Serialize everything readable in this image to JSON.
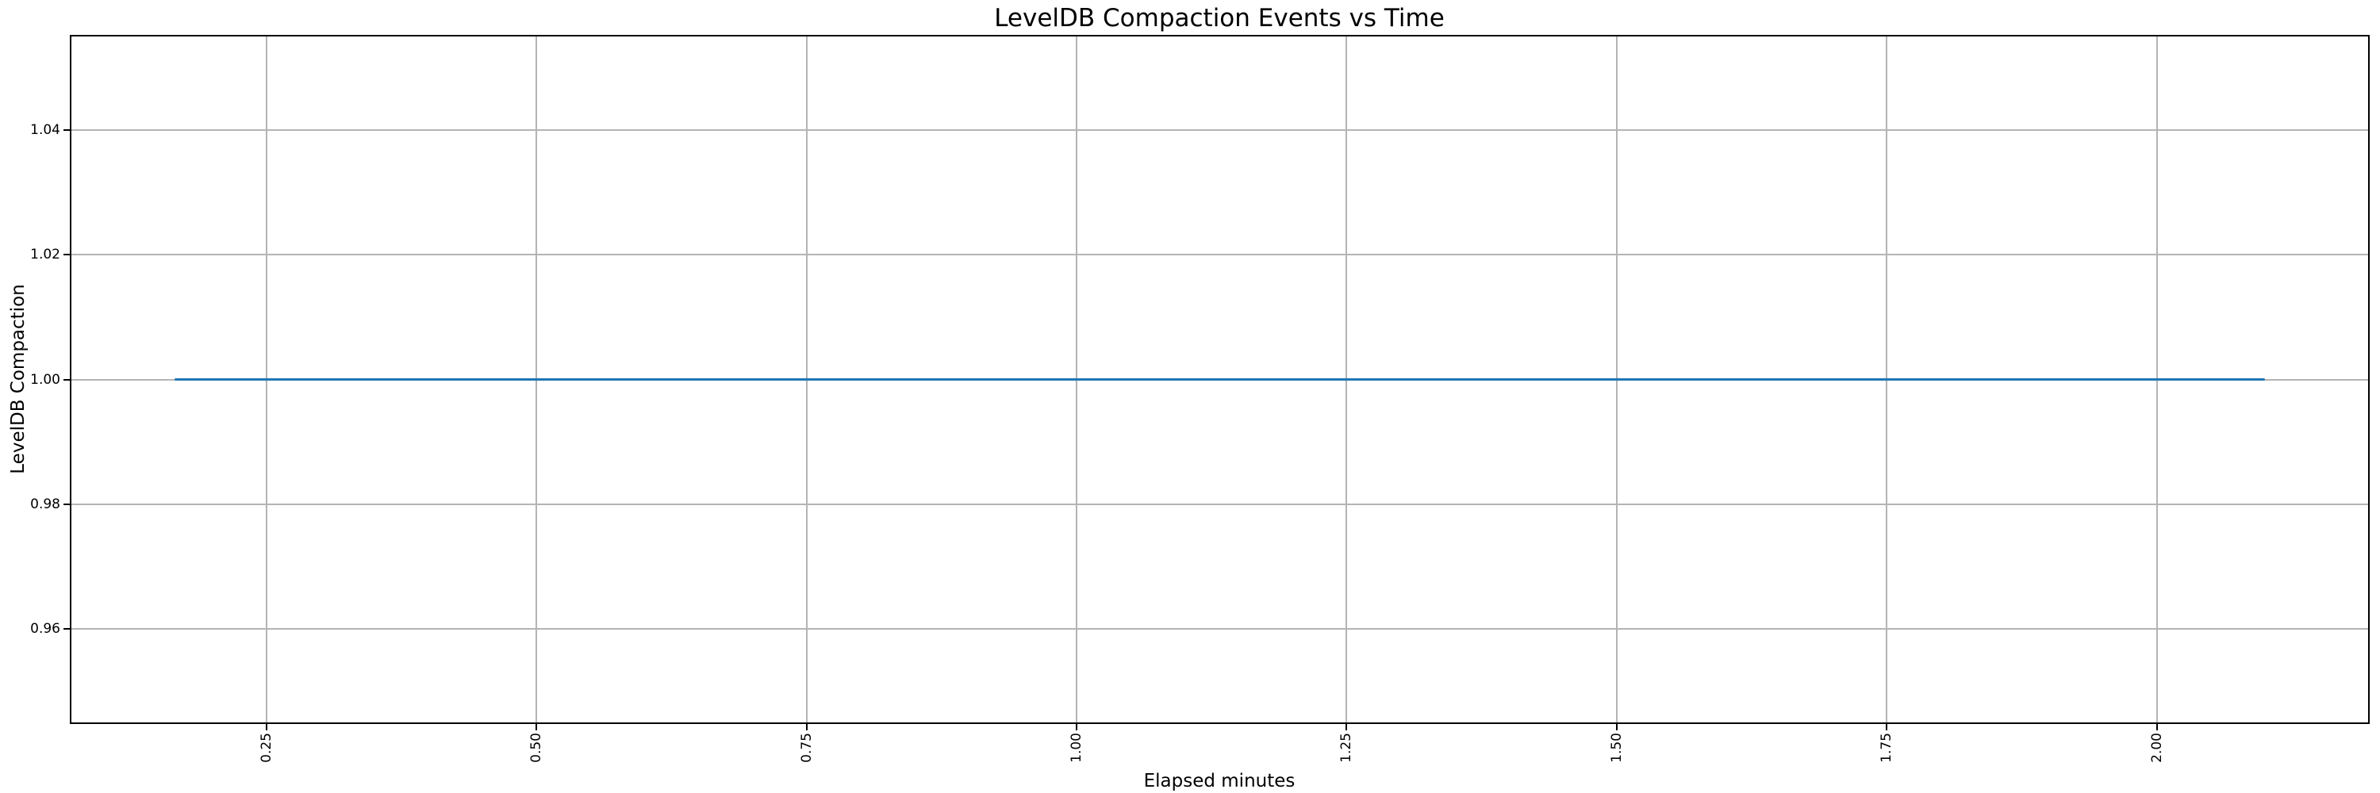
{
  "chart_data": {
    "type": "line",
    "title": "LevelDB Compaction Events vs Time",
    "xlabel": "Elapsed minutes",
    "ylabel": "LevelDB Compaction",
    "xlim": [
      0.068,
      2.197
    ],
    "ylim": [
      0.9447,
      1.0553
    ],
    "x_ticks": [
      0.25,
      0.5,
      0.75,
      1.0,
      1.25,
      1.5,
      1.75,
      2.0
    ],
    "x_tick_labels": [
      "0.25",
      "0.50",
      "0.75",
      "1.00",
      "1.25",
      "1.50",
      "1.75",
      "2.00"
    ],
    "y_ticks": [
      0.96,
      0.98,
      1.0,
      1.02,
      1.04
    ],
    "y_tick_labels": [
      "0.96",
      "0.98",
      "1.00",
      "1.02",
      "1.04"
    ],
    "grid": true,
    "legend_position": "none",
    "series": [
      {
        "name": "LevelDB Compaction",
        "color": "#1f77b4",
        "x": [
          0.165,
          2.1
        ],
        "y": [
          1.0,
          1.0
        ]
      }
    ],
    "grid_color": "#b4b4b4",
    "spine_color": "#000000",
    "text_color": "#000000",
    "background_color": "#ffffff"
  }
}
